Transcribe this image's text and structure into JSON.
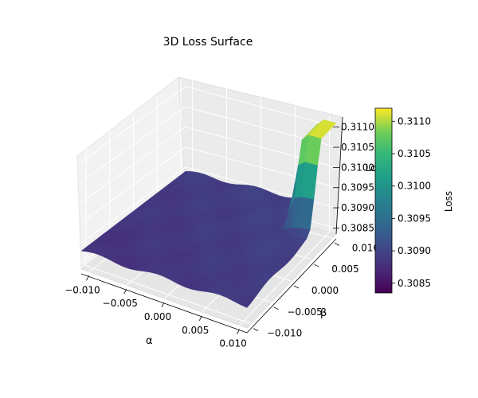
{
  "chart_data": {
    "type": "surface3d",
    "title": "3D Loss Surface",
    "xlabel": "α",
    "ylabel": "β",
    "zlabel": "Loss",
    "x_range": [
      -0.011,
      0.011
    ],
    "y_range": [
      -0.011,
      0.011
    ],
    "z_range": [
      0.30835,
      0.31125
    ],
    "x_ticks": [
      "−0.010",
      "−0.005",
      "0.000",
      "0.005",
      "0.010"
    ],
    "y_ticks": [
      "−0.010",
      "−0.005",
      "0.000",
      "0.005",
      "0.010"
    ],
    "z_ticks": [
      "0.3085",
      "0.3090",
      "0.3095",
      "0.3100",
      "0.3105",
      "0.3110"
    ],
    "grid": true,
    "colormap": "viridis",
    "colorbar": {
      "label": "Loss",
      "min": 0.30835,
      "max": 0.3112,
      "ticks": [
        "0.3085",
        "0.3090",
        "0.3095",
        "0.3100",
        "0.3105",
        "0.3110"
      ]
    },
    "surface_description_values": {
      "base_loss_low_corner": 0.3088,
      "base_loss_high_corner": 0.309,
      "peak_loss": 0.3111
    }
  }
}
